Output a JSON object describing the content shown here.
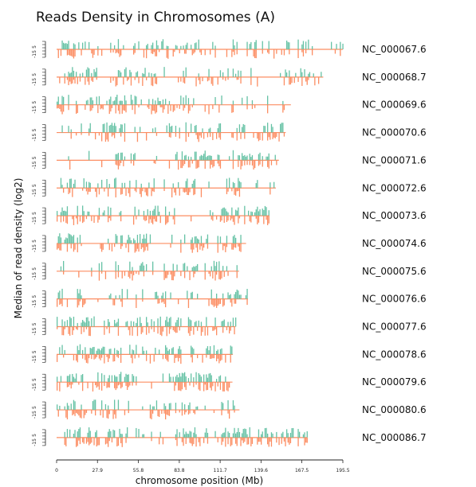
{
  "chart_data": {
    "type": "bar",
    "title": "Reads Density in Chromosomes (A)",
    "xlabel": "chromosome position (Mb)",
    "ylabel": "Median of read density (log2)",
    "x_ticks": [
      "0",
      "27.9",
      "55.8",
      "83.8",
      "111.7",
      "139.6",
      "167.5",
      "195.5"
    ],
    "xlim": [
      0,
      195.5
    ],
    "row_y_ticks": [
      "-15",
      "5"
    ],
    "colors": {
      "above": "#66c2a5",
      "below": "#fc8d62",
      "baseline": "#fc8d62"
    },
    "series_description": "Upper bars show read density above the median and lower bars show it below; each chromosome row extends to its length in Mb.",
    "chromosomes": [
      {
        "name": "NC_000067.6",
        "length": 195.5
      },
      {
        "name": "NC_000068.7",
        "length": 182.1
      },
      {
        "name": "NC_000069.6",
        "length": 160.0
      },
      {
        "name": "NC_000070.6",
        "length": 156.5
      },
      {
        "name": "NC_000071.6",
        "length": 151.8
      },
      {
        "name": "NC_000072.6",
        "length": 149.7
      },
      {
        "name": "NC_000073.6",
        "length": 145.4
      },
      {
        "name": "NC_000074.6",
        "length": 129.4
      },
      {
        "name": "NC_000075.6",
        "length": 124.6
      },
      {
        "name": "NC_000076.6",
        "length": 130.7
      },
      {
        "name": "NC_000077.6",
        "length": 122.1
      },
      {
        "name": "NC_000078.6",
        "length": 120.4
      },
      {
        "name": "NC_000079.6",
        "length": 120.1
      },
      {
        "name": "NC_000080.6",
        "length": 124.9
      },
      {
        "name": "NC_000086.7",
        "length": 171.0
      }
    ]
  }
}
